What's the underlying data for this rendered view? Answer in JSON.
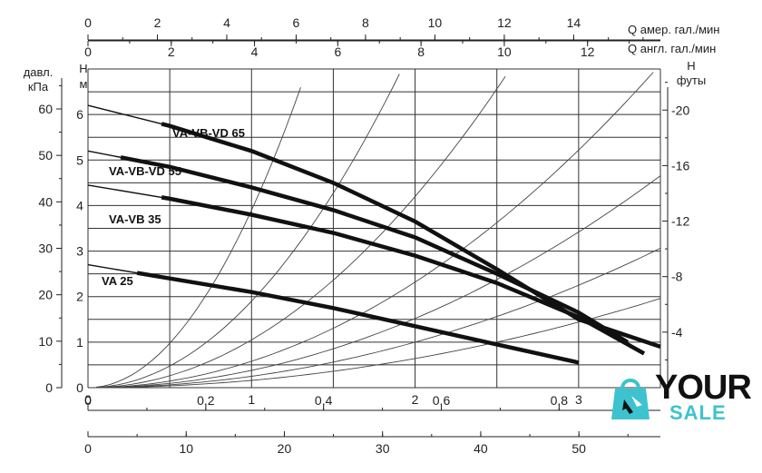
{
  "chart_data": {
    "type": "line",
    "axes": {
      "top_us_gpm": {
        "label": "Q  амер. гал./мин",
        "range": [
          0,
          16.5
        ],
        "ticks": [
          0,
          2,
          4,
          6,
          8,
          10,
          12,
          14
        ]
      },
      "top_uk_gpm": {
        "label": "Q  англ. гал./мин",
        "range": [
          0,
          13.75
        ],
        "ticks": [
          0,
          2,
          4,
          6,
          8,
          10,
          12
        ]
      },
      "bottom_m3h": {
        "range": [
          0,
          3.5
        ],
        "ticks": [
          0,
          1,
          2,
          3
        ]
      },
      "bottom_ls": {
        "range": [
          0,
          0.972
        ],
        "ticks": [
          "0",
          "0,2",
          "0,4",
          "0,6",
          "0,8"
        ]
      },
      "bottom_lmin": {
        "range": [
          0,
          58.3
        ],
        "ticks": [
          0,
          10,
          20,
          30,
          40,
          50
        ]
      },
      "left_kpa": {
        "label": "давл. кПа",
        "range": [
          0,
          68.6
        ],
        "ticks": [
          0,
          10,
          20,
          30,
          40,
          50,
          60
        ]
      },
      "left_m": {
        "label": "H м",
        "range": [
          0,
          7
        ],
        "ticks": [
          0,
          1,
          2,
          3,
          4,
          5,
          6
        ]
      },
      "right_ft": {
        "label": "H футы",
        "range": [
          0,
          22.96
        ],
        "ticks": [
          4,
          8,
          12,
          16,
          20
        ]
      }
    },
    "xlim": [
      0,
      3.5
    ],
    "ylim": [
      0,
      7
    ],
    "grid": true,
    "series": [
      {
        "name": "VA-VB-VD 65",
        "x": [
          0,
          0.5,
          1.0,
          1.5,
          2.0,
          2.5,
          3.0,
          3.5
        ],
        "y": [
          6.2,
          5.75,
          5.2,
          4.5,
          3.65,
          2.6,
          1.5,
          0.9
        ]
      },
      {
        "name": "VA-VB-VD 55",
        "x": [
          0,
          0.5,
          1.0,
          1.5,
          2.0,
          2.5,
          3.0,
          3.3
        ],
        "y": [
          5.2,
          4.85,
          4.4,
          3.9,
          3.3,
          2.5,
          1.65,
          1.0
        ]
      },
      {
        "name": "VA-VB 35",
        "x": [
          0,
          0.5,
          1.0,
          1.5,
          2.0,
          2.5,
          3.0,
          3.4
        ],
        "y": [
          4.45,
          4.15,
          3.8,
          3.4,
          2.9,
          2.3,
          1.55,
          0.75
        ]
      },
      {
        "name": "VA 25",
        "x": [
          0,
          0.5,
          1.0,
          1.5,
          2.0,
          2.5,
          3.0
        ],
        "y": [
          2.7,
          2.4,
          2.1,
          1.75,
          1.35,
          0.95,
          0.55
        ]
      }
    ],
    "system_curve_coefficients": [
      3.9,
      1.9,
      1.05,
      0.58,
      0.38,
      0.25,
      0.16
    ]
  },
  "logo": {
    "word1": "YOUR",
    "word2": "SALE"
  }
}
